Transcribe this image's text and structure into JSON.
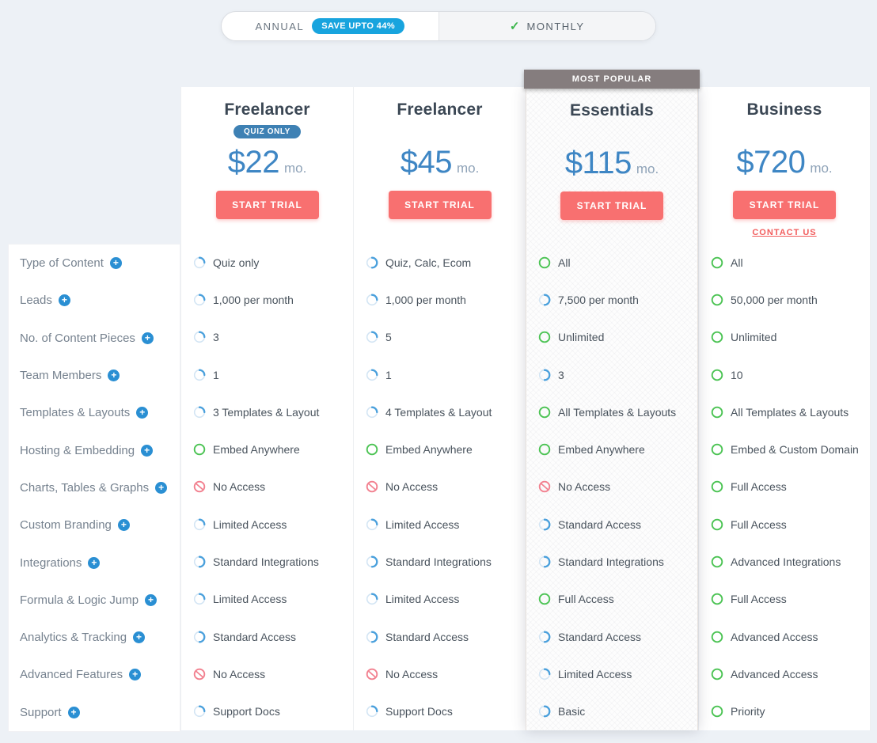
{
  "toggle": {
    "annual_label": "ANNUAL",
    "annual_badge": "SAVE UPTO 44%",
    "monthly_label": "MONTHLY"
  },
  "most_popular_banner": "MOST POPULAR",
  "plans": [
    {
      "name": "Freelancer",
      "badge": "QUIZ ONLY",
      "currency": "$",
      "price": "22",
      "period": "mo.",
      "cta": "START TRIAL",
      "contact_link": null,
      "most_popular": false
    },
    {
      "name": "Freelancer",
      "badge": null,
      "currency": "$",
      "price": "45",
      "period": "mo.",
      "cta": "START TRIAL",
      "contact_link": null,
      "most_popular": false
    },
    {
      "name": "Essentials",
      "badge": null,
      "currency": "$",
      "price": "115",
      "period": "mo.",
      "cta": "START TRIAL",
      "contact_link": null,
      "most_popular": true
    },
    {
      "name": "Business",
      "badge": null,
      "currency": "$",
      "price": "720",
      "period": "mo.",
      "cta": "START TRIAL",
      "contact_link": "CONTACT US",
      "most_popular": false
    }
  ],
  "icon_legend": {
    "quarter": "limited-tier-icon",
    "half": "standard-tier-icon",
    "full": "included-icon",
    "none": "no-access-icon"
  },
  "features": [
    {
      "label": "Type of Content",
      "cells": [
        {
          "icon": "quarter",
          "text": "Quiz only"
        },
        {
          "icon": "half",
          "text": "Quiz, Calc, Ecom"
        },
        {
          "icon": "full",
          "text": "All"
        },
        {
          "icon": "full",
          "text": "All"
        }
      ]
    },
    {
      "label": "Leads",
      "cells": [
        {
          "icon": "quarter",
          "text": "1,000 per month"
        },
        {
          "icon": "quarter",
          "text": "1,000 per month"
        },
        {
          "icon": "half",
          "text": "7,500 per month"
        },
        {
          "icon": "full",
          "text": "50,000 per month"
        }
      ]
    },
    {
      "label": "No. of Content Pieces",
      "cells": [
        {
          "icon": "quarter",
          "text": "3"
        },
        {
          "icon": "quarter",
          "text": "5"
        },
        {
          "icon": "full",
          "text": "Unlimited"
        },
        {
          "icon": "full",
          "text": "Unlimited"
        }
      ]
    },
    {
      "label": "Team Members",
      "cells": [
        {
          "icon": "quarter",
          "text": "1"
        },
        {
          "icon": "quarter",
          "text": "1"
        },
        {
          "icon": "half",
          "text": "3"
        },
        {
          "icon": "full",
          "text": "10"
        }
      ]
    },
    {
      "label": "Templates & Layouts",
      "cells": [
        {
          "icon": "quarter",
          "text": "3 Templates & Layout"
        },
        {
          "icon": "quarter",
          "text": "4 Templates & Layout"
        },
        {
          "icon": "full",
          "text": "All Templates & Layouts"
        },
        {
          "icon": "full",
          "text": "All Templates & Layouts"
        }
      ]
    },
    {
      "label": "Hosting & Embedding",
      "cells": [
        {
          "icon": "full",
          "text": "Embed Anywhere"
        },
        {
          "icon": "full",
          "text": "Embed Anywhere"
        },
        {
          "icon": "full",
          "text": "Embed Anywhere"
        },
        {
          "icon": "full",
          "text": "Embed & Custom Domain"
        }
      ]
    },
    {
      "label": "Charts, Tables & Graphs",
      "cells": [
        {
          "icon": "none",
          "text": "No Access"
        },
        {
          "icon": "none",
          "text": "No Access"
        },
        {
          "icon": "none",
          "text": "No Access"
        },
        {
          "icon": "full",
          "text": "Full Access"
        }
      ]
    },
    {
      "label": "Custom Branding",
      "cells": [
        {
          "icon": "quarter",
          "text": "Limited Access"
        },
        {
          "icon": "quarter",
          "text": "Limited Access"
        },
        {
          "icon": "half",
          "text": "Standard Access"
        },
        {
          "icon": "full",
          "text": "Full Access"
        }
      ]
    },
    {
      "label": "Integrations",
      "cells": [
        {
          "icon": "half",
          "text": "Standard Integrations"
        },
        {
          "icon": "half",
          "text": "Standard Integrations"
        },
        {
          "icon": "half",
          "text": "Standard Integrations"
        },
        {
          "icon": "full",
          "text": "Advanced Integrations"
        }
      ]
    },
    {
      "label": "Formula & Logic Jump",
      "cells": [
        {
          "icon": "quarter",
          "text": "Limited Access"
        },
        {
          "icon": "quarter",
          "text": "Limited Access"
        },
        {
          "icon": "full",
          "text": "Full Access"
        },
        {
          "icon": "full",
          "text": "Full Access"
        }
      ]
    },
    {
      "label": "Analytics & Tracking",
      "cells": [
        {
          "icon": "half",
          "text": "Standard Access"
        },
        {
          "icon": "half",
          "text": "Standard Access"
        },
        {
          "icon": "half",
          "text": "Standard Access"
        },
        {
          "icon": "full",
          "text": "Advanced Access"
        }
      ]
    },
    {
      "label": "Advanced Features",
      "cells": [
        {
          "icon": "none",
          "text": "No Access"
        },
        {
          "icon": "none",
          "text": "No Access"
        },
        {
          "icon": "quarter",
          "text": "Limited Access"
        },
        {
          "icon": "full",
          "text": "Advanced Access"
        }
      ]
    },
    {
      "label": "Support",
      "cells": [
        {
          "icon": "quarter",
          "text": "Support Docs"
        },
        {
          "icon": "quarter",
          "text": "Support Docs"
        },
        {
          "icon": "half",
          "text": "Basic"
        },
        {
          "icon": "full",
          "text": "Priority"
        }
      ]
    }
  ],
  "colors": {
    "accent-blue": "#3e86c4",
    "arc-blue": "#4aa0dc",
    "arc-track": "#d3e5f4",
    "included-green": "#4bc353",
    "no-access-red": "#f2808f",
    "cta-coral": "#f87070",
    "banner-gray": "#857d7e",
    "save-badge-blue": "#18a4de",
    "plan-badge-blue": "#3e81b4",
    "plus-blue": "#2a8fd3",
    "contact-red": "#f25c5c",
    "check-green": "#3cb54c"
  }
}
